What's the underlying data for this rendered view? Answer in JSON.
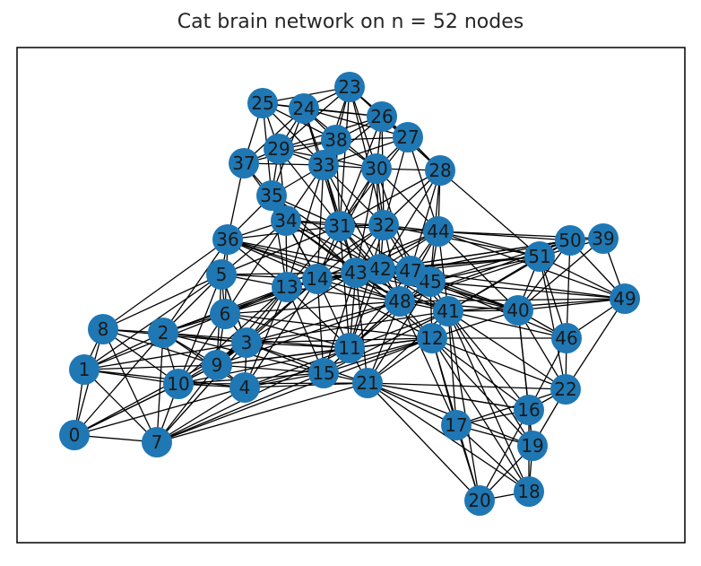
{
  "title": "Cat brain network on n = 52 nodes",
  "node_color": "#1f77b4",
  "edge_color": "#000000",
  "nodes": [
    {
      "id": "0"
    },
    {
      "id": "1"
    },
    {
      "id": "2"
    },
    {
      "id": "3"
    },
    {
      "id": "4"
    },
    {
      "id": "5"
    },
    {
      "id": "6"
    },
    {
      "id": "7"
    },
    {
      "id": "8"
    },
    {
      "id": "9"
    },
    {
      "id": "10"
    },
    {
      "id": "11"
    },
    {
      "id": "12"
    },
    {
      "id": "13"
    },
    {
      "id": "14"
    },
    {
      "id": "15"
    },
    {
      "id": "16"
    },
    {
      "id": "17"
    },
    {
      "id": "18"
    },
    {
      "id": "19"
    },
    {
      "id": "20"
    },
    {
      "id": "21"
    },
    {
      "id": "22"
    },
    {
      "id": "23"
    },
    {
      "id": "24"
    },
    {
      "id": "25"
    },
    {
      "id": "26"
    },
    {
      "id": "27"
    },
    {
      "id": "28"
    },
    {
      "id": "29"
    },
    {
      "id": "30"
    },
    {
      "id": "31"
    },
    {
      "id": "32"
    },
    {
      "id": "33"
    },
    {
      "id": "34"
    },
    {
      "id": "35"
    },
    {
      "id": "36"
    },
    {
      "id": "37"
    },
    {
      "id": "38"
    },
    {
      "id": "39"
    },
    {
      "id": "40"
    },
    {
      "id": "41"
    },
    {
      "id": "42"
    },
    {
      "id": "43"
    },
    {
      "id": "44"
    },
    {
      "id": "45"
    },
    {
      "id": "46"
    },
    {
      "id": "47"
    },
    {
      "id": "48"
    },
    {
      "id": "49"
    },
    {
      "id": "50"
    },
    {
      "id": "51"
    }
  ],
  "edges": [
    [
      "0",
      "1"
    ],
    [
      "0",
      "7"
    ],
    [
      "0",
      "2"
    ],
    [
      "0",
      "10"
    ],
    [
      "0",
      "8"
    ],
    [
      "0",
      "3"
    ],
    [
      "0",
      "9"
    ],
    [
      "0",
      "4"
    ],
    [
      "1",
      "8"
    ],
    [
      "1",
      "2"
    ],
    [
      "1",
      "10"
    ],
    [
      "1",
      "7"
    ],
    [
      "1",
      "3"
    ],
    [
      "1",
      "9"
    ],
    [
      "1",
      "4"
    ],
    [
      "1",
      "6"
    ],
    [
      "1",
      "5"
    ],
    [
      "2",
      "8"
    ],
    [
      "2",
      "10"
    ],
    [
      "2",
      "3"
    ],
    [
      "2",
      "9"
    ],
    [
      "2",
      "7"
    ],
    [
      "2",
      "4"
    ],
    [
      "2",
      "6"
    ],
    [
      "2",
      "5"
    ],
    [
      "2",
      "13"
    ],
    [
      "2",
      "11"
    ],
    [
      "2",
      "15"
    ],
    [
      "2",
      "14"
    ],
    [
      "2",
      "36"
    ],
    [
      "3",
      "4"
    ],
    [
      "3",
      "9"
    ],
    [
      "3",
      "10"
    ],
    [
      "3",
      "6"
    ],
    [
      "3",
      "13"
    ],
    [
      "3",
      "11"
    ],
    [
      "3",
      "15"
    ],
    [
      "3",
      "14"
    ],
    [
      "3",
      "12"
    ],
    [
      "3",
      "43"
    ],
    [
      "3",
      "21"
    ],
    [
      "3",
      "7"
    ],
    [
      "3",
      "5"
    ],
    [
      "3",
      "41"
    ],
    [
      "3",
      "48"
    ],
    [
      "4",
      "9"
    ],
    [
      "4",
      "10"
    ],
    [
      "4",
      "7"
    ],
    [
      "4",
      "11"
    ],
    [
      "4",
      "15"
    ],
    [
      "4",
      "21"
    ],
    [
      "4",
      "13"
    ],
    [
      "4",
      "14"
    ],
    [
      "4",
      "12"
    ],
    [
      "5",
      "6"
    ],
    [
      "5",
      "13"
    ],
    [
      "5",
      "36"
    ],
    [
      "5",
      "14"
    ],
    [
      "5",
      "9"
    ],
    [
      "5",
      "31"
    ],
    [
      "5",
      "34"
    ],
    [
      "5",
      "43"
    ],
    [
      "5",
      "3"
    ],
    [
      "5",
      "10"
    ],
    [
      "5",
      "8"
    ],
    [
      "6",
      "13"
    ],
    [
      "6",
      "9"
    ],
    [
      "6",
      "10"
    ],
    [
      "6",
      "14"
    ],
    [
      "6",
      "11"
    ],
    [
      "6",
      "43"
    ],
    [
      "6",
      "48"
    ],
    [
      "6",
      "12"
    ],
    [
      "6",
      "3"
    ],
    [
      "6",
      "36"
    ],
    [
      "6",
      "34"
    ],
    [
      "7",
      "10"
    ],
    [
      "7",
      "9"
    ],
    [
      "7",
      "8"
    ],
    [
      "7",
      "11"
    ],
    [
      "7",
      "15"
    ],
    [
      "7",
      "21"
    ],
    [
      "7",
      "3"
    ],
    [
      "7",
      "12"
    ],
    [
      "8",
      "10"
    ],
    [
      "8",
      "9"
    ],
    [
      "8",
      "3"
    ],
    [
      "8",
      "36"
    ],
    [
      "9",
      "10"
    ],
    [
      "9",
      "11"
    ],
    [
      "9",
      "15"
    ],
    [
      "9",
      "13"
    ],
    [
      "9",
      "14"
    ],
    [
      "9",
      "12"
    ],
    [
      "9",
      "48"
    ],
    [
      "10",
      "11"
    ],
    [
      "10",
      "15"
    ],
    [
      "10",
      "13"
    ],
    [
      "10",
      "21"
    ],
    [
      "11",
      "12"
    ],
    [
      "11",
      "14"
    ],
    [
      "11",
      "15"
    ],
    [
      "11",
      "21"
    ],
    [
      "11",
      "43"
    ],
    [
      "11",
      "48"
    ],
    [
      "11",
      "41"
    ],
    [
      "11",
      "13"
    ],
    [
      "11",
      "42"
    ],
    [
      "11",
      "47"
    ],
    [
      "11",
      "45"
    ],
    [
      "11",
      "31"
    ],
    [
      "11",
      "32"
    ],
    [
      "12",
      "41"
    ],
    [
      "12",
      "48"
    ],
    [
      "12",
      "45"
    ],
    [
      "12",
      "40"
    ],
    [
      "12",
      "21"
    ],
    [
      "12",
      "15"
    ],
    [
      "12",
      "43"
    ],
    [
      "12",
      "17"
    ],
    [
      "12",
      "16"
    ],
    [
      "12",
      "19"
    ],
    [
      "12",
      "22"
    ],
    [
      "12",
      "14"
    ],
    [
      "12",
      "46"
    ],
    [
      "12",
      "20"
    ],
    [
      "12",
      "18"
    ],
    [
      "13",
      "14"
    ],
    [
      "13",
      "43"
    ],
    [
      "13",
      "31"
    ],
    [
      "13",
      "34"
    ],
    [
      "13",
      "32"
    ],
    [
      "13",
      "42"
    ],
    [
      "13",
      "48"
    ],
    [
      "13",
      "15"
    ],
    [
      "13",
      "35"
    ],
    [
      "13",
      "36"
    ],
    [
      "13",
      "33"
    ],
    [
      "14",
      "43"
    ],
    [
      "14",
      "31"
    ],
    [
      "14",
      "42"
    ],
    [
      "14",
      "32"
    ],
    [
      "14",
      "34"
    ],
    [
      "14",
      "35"
    ],
    [
      "14",
      "48"
    ],
    [
      "14",
      "47"
    ],
    [
      "14",
      "33"
    ],
    [
      "14",
      "30"
    ],
    [
      "14",
      "44"
    ],
    [
      "14",
      "15"
    ],
    [
      "14",
      "36"
    ],
    [
      "15",
      "21"
    ],
    [
      "15",
      "43"
    ],
    [
      "15",
      "48"
    ],
    [
      "15",
      "41"
    ],
    [
      "16",
      "19"
    ],
    [
      "16",
      "22"
    ],
    [
      "16",
      "17"
    ],
    [
      "16",
      "20"
    ],
    [
      "16",
      "18"
    ],
    [
      "16",
      "46"
    ],
    [
      "16",
      "40"
    ],
    [
      "16",
      "41"
    ],
    [
      "16",
      "21"
    ],
    [
      "17",
      "19"
    ],
    [
      "17",
      "20"
    ],
    [
      "17",
      "18"
    ],
    [
      "17",
      "21"
    ],
    [
      "17",
      "41"
    ],
    [
      "17",
      "48"
    ],
    [
      "17",
      "22"
    ],
    [
      "18",
      "19"
    ],
    [
      "18",
      "20"
    ],
    [
      "18",
      "21"
    ],
    [
      "18",
      "41"
    ],
    [
      "19",
      "20"
    ],
    [
      "19",
      "22"
    ],
    [
      "19",
      "21"
    ],
    [
      "19",
      "41"
    ],
    [
      "19",
      "40"
    ],
    [
      "20",
      "21"
    ],
    [
      "20",
      "41"
    ],
    [
      "21",
      "41"
    ],
    [
      "21",
      "48"
    ],
    [
      "21",
      "43"
    ],
    [
      "21",
      "22"
    ],
    [
      "21",
      "16"
    ],
    [
      "21",
      "45"
    ],
    [
      "22",
      "46"
    ],
    [
      "22",
      "40"
    ],
    [
      "22",
      "41"
    ],
    [
      "22",
      "49"
    ],
    [
      "22",
      "51"
    ],
    [
      "23",
      "24"
    ],
    [
      "23",
      "25"
    ],
    [
      "23",
      "26"
    ],
    [
      "23",
      "38"
    ],
    [
      "23",
      "33"
    ],
    [
      "23",
      "29"
    ],
    [
      "23",
      "27"
    ],
    [
      "23",
      "30"
    ],
    [
      "23",
      "28"
    ],
    [
      "23",
      "31"
    ],
    [
      "23",
      "32"
    ],
    [
      "24",
      "25"
    ],
    [
      "24",
      "38"
    ],
    [
      "24",
      "29"
    ],
    [
      "24",
      "33"
    ],
    [
      "24",
      "26"
    ],
    [
      "24",
      "37"
    ],
    [
      "24",
      "30"
    ],
    [
      "24",
      "27"
    ],
    [
      "24",
      "35"
    ],
    [
      "24",
      "31"
    ],
    [
      "25",
      "29"
    ],
    [
      "25",
      "37"
    ],
    [
      "25",
      "33"
    ],
    [
      "25",
      "38"
    ],
    [
      "25",
      "35"
    ],
    [
      "25",
      "26"
    ],
    [
      "26",
      "27"
    ],
    [
      "26",
      "38"
    ],
    [
      "26",
      "30"
    ],
    [
      "26",
      "28"
    ],
    [
      "26",
      "33"
    ],
    [
      "26",
      "32"
    ],
    [
      "26",
      "31"
    ],
    [
      "26",
      "29"
    ],
    [
      "27",
      "28"
    ],
    [
      "27",
      "30"
    ],
    [
      "27",
      "38"
    ],
    [
      "27",
      "32"
    ],
    [
      "27",
      "44"
    ],
    [
      "27",
      "33"
    ],
    [
      "27",
      "31"
    ],
    [
      "28",
      "30"
    ],
    [
      "28",
      "44"
    ],
    [
      "28",
      "32"
    ],
    [
      "28",
      "31"
    ],
    [
      "28",
      "45"
    ],
    [
      "28",
      "47"
    ],
    [
      "28",
      "42"
    ],
    [
      "28",
      "51"
    ],
    [
      "29",
      "33"
    ],
    [
      "29",
      "38"
    ],
    [
      "29",
      "37"
    ],
    [
      "29",
      "35"
    ],
    [
      "29",
      "34"
    ],
    [
      "29",
      "31"
    ],
    [
      "29",
      "30"
    ],
    [
      "30",
      "38"
    ],
    [
      "30",
      "33"
    ],
    [
      "30",
      "31"
    ],
    [
      "30",
      "32"
    ],
    [
      "30",
      "44"
    ],
    [
      "30",
      "42"
    ],
    [
      "30",
      "47"
    ],
    [
      "30",
      "43"
    ],
    [
      "31",
      "32"
    ],
    [
      "31",
      "33"
    ],
    [
      "31",
      "34"
    ],
    [
      "31",
      "35"
    ],
    [
      "31",
      "43"
    ],
    [
      "31",
      "42"
    ],
    [
      "31",
      "47"
    ],
    [
      "31",
      "48"
    ],
    [
      "31",
      "44"
    ],
    [
      "31",
      "36"
    ],
    [
      "31",
      "38"
    ],
    [
      "32",
      "44"
    ],
    [
      "32",
      "43"
    ],
    [
      "32",
      "42"
    ],
    [
      "32",
      "47"
    ],
    [
      "32",
      "45"
    ],
    [
      "32",
      "33"
    ],
    [
      "32",
      "48"
    ],
    [
      "32",
      "34"
    ],
    [
      "32",
      "51"
    ],
    [
      "33",
      "34"
    ],
    [
      "33",
      "35"
    ],
    [
      "33",
      "38"
    ],
    [
      "33",
      "37"
    ],
    [
      "33",
      "43"
    ],
    [
      "33",
      "42"
    ],
    [
      "34",
      "35"
    ],
    [
      "34",
      "36"
    ],
    [
      "34",
      "37"
    ],
    [
      "34",
      "43"
    ],
    [
      "34",
      "42"
    ],
    [
      "34",
      "48"
    ],
    [
      "35",
      "37"
    ],
    [
      "35",
      "36"
    ],
    [
      "35",
      "43"
    ],
    [
      "35",
      "42"
    ],
    [
      "36",
      "37"
    ],
    [
      "36",
      "43"
    ],
    [
      "36",
      "42"
    ],
    [
      "36",
      "48"
    ],
    [
      "36",
      "41"
    ],
    [
      "37",
      "38"
    ],
    [
      "39",
      "50"
    ],
    [
      "39",
      "51"
    ],
    [
      "39",
      "49"
    ],
    [
      "39",
      "40"
    ],
    [
      "39",
      "44"
    ],
    [
      "40",
      "41"
    ],
    [
      "40",
      "45"
    ],
    [
      "40",
      "51"
    ],
    [
      "40",
      "49"
    ],
    [
      "40",
      "50"
    ],
    [
      "40",
      "46"
    ],
    [
      "40",
      "47"
    ],
    [
      "40",
      "48"
    ],
    [
      "40",
      "44"
    ],
    [
      "40",
      "42"
    ],
    [
      "40",
      "43"
    ],
    [
      "41",
      "45"
    ],
    [
      "41",
      "48"
    ],
    [
      "41",
      "47"
    ],
    [
      "41",
      "42"
    ],
    [
      "41",
      "43"
    ],
    [
      "41",
      "51"
    ],
    [
      "41",
      "46"
    ],
    [
      "41",
      "49"
    ],
    [
      "41",
      "50"
    ],
    [
      "41",
      "44"
    ],
    [
      "42",
      "43"
    ],
    [
      "42",
      "47"
    ],
    [
      "42",
      "48"
    ],
    [
      "42",
      "45"
    ],
    [
      "42",
      "44"
    ],
    [
      "42",
      "51"
    ],
    [
      "42",
      "50"
    ],
    [
      "43",
      "48"
    ],
    [
      "43",
      "47"
    ],
    [
      "43",
      "45"
    ],
    [
      "43",
      "44"
    ],
    [
      "43",
      "51"
    ],
    [
      "43",
      "50"
    ],
    [
      "44",
      "51"
    ],
    [
      "44",
      "50"
    ],
    [
      "44",
      "47"
    ],
    [
      "44",
      "45"
    ],
    [
      "44",
      "49"
    ],
    [
      "44",
      "48"
    ],
    [
      "45",
      "47"
    ],
    [
      "45",
      "48"
    ],
    [
      "45",
      "51"
    ],
    [
      "45",
      "50"
    ],
    [
      "45",
      "49"
    ],
    [
      "45",
      "46"
    ],
    [
      "46",
      "49"
    ],
    [
      "46",
      "51"
    ],
    [
      "46",
      "50"
    ],
    [
      "47",
      "48"
    ],
    [
      "47",
      "51"
    ],
    [
      "47",
      "50"
    ],
    [
      "47",
      "49"
    ],
    [
      "48",
      "51"
    ],
    [
      "48",
      "50"
    ],
    [
      "48",
      "49"
    ],
    [
      "49",
      "50"
    ],
    [
      "49",
      "51"
    ],
    [
      "50",
      "51"
    ]
  ]
}
